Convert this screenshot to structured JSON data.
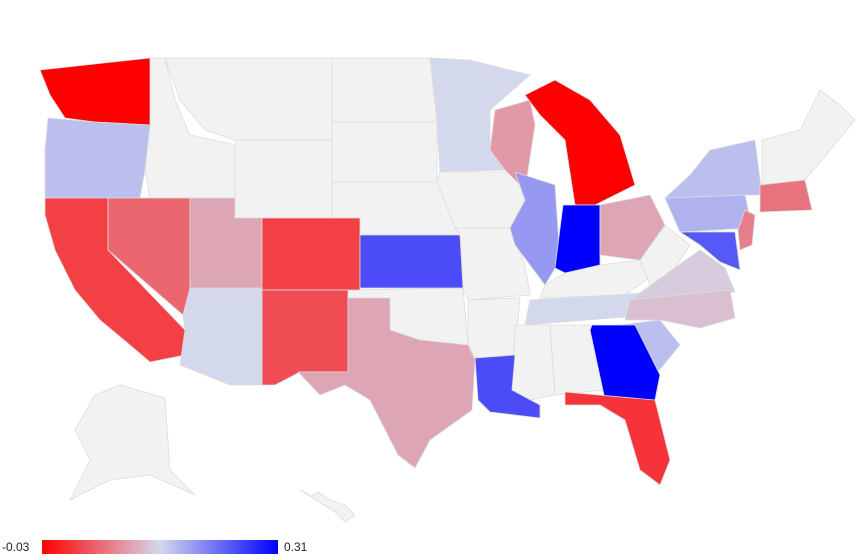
{
  "chart_data": {
    "type": "geo",
    "values": [
      -0.03,
      0.16,
      0.02,
      0.05,
      0.1,
      0.14,
      0.02,
      0.03,
      0.1,
      0.25,
      0.14,
      0.09,
      -0.03,
      0.19,
      0.31,
      0.1,
      0.14,
      0.13,
      0.12,
      0.16,
      0.31,
      0.01,
      0.25,
      0.24,
      0.17,
      0.16,
      0.07,
      0.06
    ],
    "color_min": -0.03,
    "color_max": 0.31,
    "colors": [
      "#ff0000",
      "#d4d8ec",
      "#0000ff"
    ]
  }
}
